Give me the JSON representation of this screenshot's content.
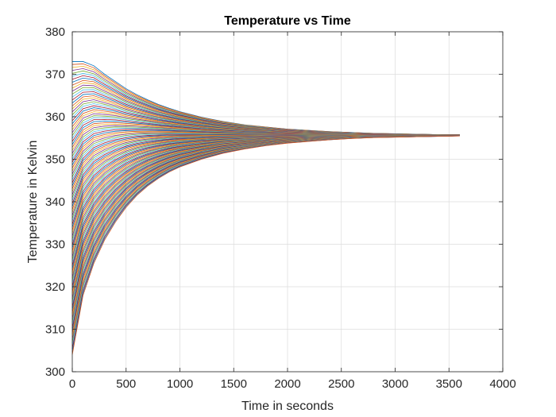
{
  "chart_data": {
    "type": "line",
    "title": "Temperature vs Time",
    "xlabel": "Time in seconds",
    "ylabel": "Temperature in Kelvin",
    "xlim": [
      0,
      4000
    ],
    "ylim": [
      300,
      380
    ],
    "xticks": [
      0,
      500,
      1000,
      1500,
      2000,
      2500,
      3000,
      3500,
      4000
    ],
    "yticks": [
      300,
      310,
      320,
      330,
      340,
      350,
      360,
      370,
      380
    ],
    "grid": true,
    "legend": "none",
    "series_count": 100,
    "x": [
      0,
      100,
      200,
      300,
      400,
      500,
      600,
      700,
      800,
      900,
      1000,
      1200,
      1400,
      1600,
      1800,
      2000,
      2200,
      2400,
      2600,
      2800,
      3000,
      3200,
      3400,
      3600
    ],
    "series_upper_envelope": [
      373,
      373,
      372,
      370,
      368.3,
      366.6,
      365.2,
      364,
      362.9,
      362,
      361.2,
      359.9,
      358.9,
      358.1,
      357.6,
      357.1,
      356.8,
      356.5,
      356.3,
      356.1,
      356.0,
      355.9,
      355.8,
      355.8
    ],
    "series_lower_envelope": [
      304,
      318,
      325.5,
      331,
      335.2,
      338.7,
      341.5,
      343.7,
      345.5,
      347,
      348.2,
      350.0,
      351.4,
      352.4,
      353.2,
      353.8,
      354.2,
      354.6,
      354.9,
      355.1,
      355.2,
      355.3,
      355.4,
      355.5
    ],
    "colors": [
      "#0072BD",
      "#D95319",
      "#EDB120",
      "#7E2F8E",
      "#77AC30",
      "#4DBEEE",
      "#A2142F"
    ]
  }
}
